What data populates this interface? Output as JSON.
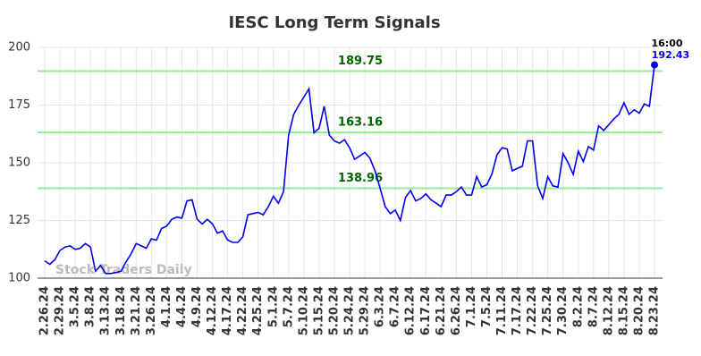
{
  "chart_data": {
    "type": "line",
    "title": "IESC Long Term Signals",
    "watermark": "Stock Traders Daily",
    "last_time": "16:00",
    "color": "#0000ee",
    "hline_color": "#90ee90",
    "hline_label_color": "#006400",
    "hlines": [
      189.75,
      163.16,
      138.96
    ],
    "grid": true,
    "ylim": [
      100,
      200
    ],
    "yticks": [
      100,
      125,
      150,
      175,
      200
    ],
    "categories": [
      "2.26.24",
      null,
      null,
      "2.29.24",
      null,
      null,
      "3.5.24",
      null,
      null,
      "3.8.24",
      null,
      null,
      "3.13.24",
      null,
      null,
      "3.18.24",
      null,
      null,
      "3.21.24",
      null,
      null,
      "3.26.24",
      null,
      null,
      "4.1.24",
      null,
      null,
      "4.4.24",
      null,
      null,
      "4.9.24",
      null,
      null,
      "4.12.24",
      null,
      null,
      "4.17.24",
      null,
      null,
      "4.22.24",
      null,
      null,
      "4.25.24",
      null,
      null,
      "5.1.24",
      null,
      null,
      "5.7.24",
      null,
      null,
      "5.10.24",
      null,
      null,
      "5.15.24",
      null,
      null,
      "5.20.24",
      null,
      null,
      "5.24.24",
      null,
      null,
      "5.29.24",
      null,
      null,
      "6.3.24",
      null,
      null,
      "6.7.24",
      null,
      null,
      "6.12.24",
      null,
      null,
      "6.17.24",
      null,
      null,
      "6.21.24",
      null,
      null,
      "6.26.24",
      null,
      null,
      "7.1.24",
      null,
      null,
      "7.5.24",
      null,
      null,
      "7.11.24",
      null,
      null,
      "7.17.24",
      null,
      null,
      "7.22.24",
      null,
      null,
      "7.25.24",
      null,
      null,
      "7.30.24",
      null,
      null,
      "8.2.24",
      null,
      null,
      "8.7.24",
      null,
      null,
      "8.12.24",
      null,
      null,
      "8.15.24",
      null,
      null,
      "8.20.24",
      null,
      null,
      "8.23.24"
    ],
    "values": [
      107.5,
      106,
      108,
      112,
      113.5,
      114,
      112.5,
      113,
      115,
      113.5,
      103,
      105.5,
      102,
      102,
      102.5,
      103,
      107,
      110.5,
      115,
      114,
      113,
      117,
      116.5,
      121.5,
      122.5,
      125.5,
      126.5,
      126,
      133.5,
      134,
      125.5,
      123.5,
      125.5,
      123.5,
      119.5,
      120.5,
      116.5,
      115.5,
      115.5,
      118,
      127.5,
      128,
      128.5,
      127.5,
      131,
      135.5,
      132.5,
      137.5,
      162,
      171,
      175,
      178.5,
      182,
      163,
      165,
      174.5,
      162,
      159.5,
      158.5,
      160,
      156.5,
      151.5,
      153,
      154.5,
      152,
      146.5,
      139,
      131,
      128,
      129.5,
      125,
      135,
      138,
      133.5,
      134.5,
      136.5,
      134,
      132.5,
      131,
      136,
      136,
      137.5,
      139.5,
      136,
      136,
      144,
      139.5,
      140.5,
      145,
      153.5,
      156.5,
      156,
      146.5,
      147.5,
      148.5,
      159.5,
      159.5,
      140,
      134.5,
      144,
      140,
      139.5,
      154,
      150,
      145,
      155,
      150.5,
      157,
      155.5,
      166,
      164,
      166.5,
      169,
      171,
      176,
      171,
      173,
      171.5,
      175.5,
      174.5,
      192.43
    ]
  }
}
